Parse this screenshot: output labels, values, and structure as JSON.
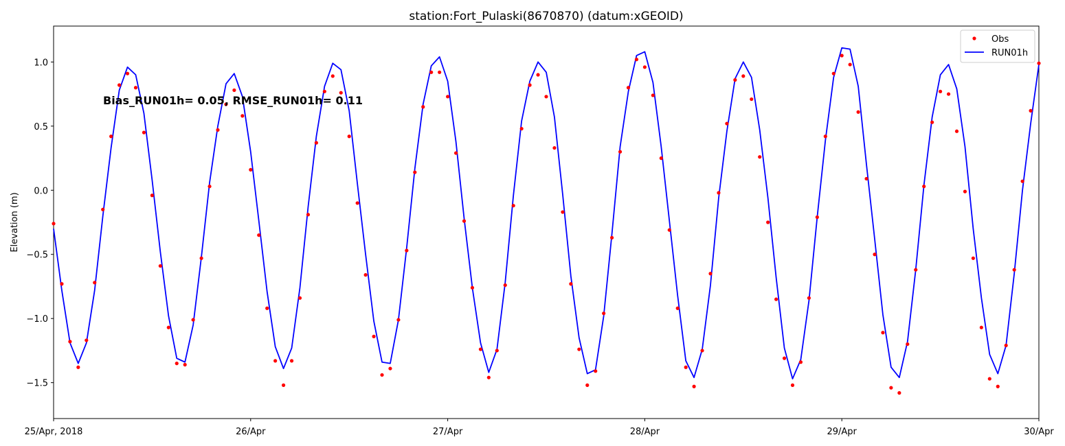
{
  "chart_data": {
    "type": "line",
    "title": "station:Fort_Pulaski(8670870) (datum:xGEOID)",
    "xlabel": "",
    "ylabel": "Elevation (m)",
    "xlim": [
      "2018-04-25 00:00",
      "2018-04-30 00:00"
    ],
    "ylim": [
      -1.78,
      1.28
    ],
    "x_tick_labels": [
      "25/Apr, 2018",
      "26/Apr",
      "27/Apr",
      "28/Apr",
      "29/Apr",
      "30/Apr"
    ],
    "y_ticks": [
      -1.5,
      -1.0,
      -0.5,
      0.0,
      0.5,
      1.0
    ],
    "y_tick_labels": [
      "−1.5",
      "−1.0",
      "−0.5",
      "0.0",
      "0.5",
      "1.0"
    ],
    "x_time_step_hours": 1,
    "annotation": "Bias_RUN01h=  0.05, RMSE_RUN01h=  0.11",
    "legend": {
      "position": "upper right",
      "entries": [
        "Obs",
        "RUN01h"
      ]
    },
    "grid": false,
    "series": [
      {
        "name": "Obs",
        "style": "markers",
        "color": "#ff0000",
        "values": [
          -0.26,
          -0.73,
          -1.18,
          -1.38,
          -1.17,
          -0.72,
          -0.15,
          0.42,
          0.82,
          0.91,
          0.8,
          0.45,
          -0.04,
          -0.59,
          -1.07,
          -1.35,
          -1.36,
          -1.01,
          -0.53,
          0.03,
          0.47,
          0.67,
          0.78,
          0.58,
          0.16,
          -0.35,
          -0.92,
          -1.33,
          -1.52,
          -1.33,
          -0.84,
          -0.19,
          0.37,
          0.77,
          0.89,
          0.76,
          0.42,
          -0.1,
          -0.66,
          -1.14,
          -1.44,
          -1.39,
          -1.01,
          -0.47,
          0.14,
          0.65,
          0.92,
          0.92,
          0.73,
          0.29,
          -0.24,
          -0.76,
          -1.24,
          -1.46,
          -1.25,
          -0.74,
          -0.12,
          0.48,
          0.82,
          0.9,
          0.73,
          0.33,
          -0.17,
          -0.73,
          -1.24,
          -1.52,
          -1.41,
          -0.96,
          -0.37,
          0.3,
          0.8,
          1.02,
          0.96,
          0.74,
          0.25,
          -0.31,
          -0.92,
          -1.38,
          -1.53,
          -1.25,
          -0.65,
          -0.02,
          0.52,
          0.86,
          0.89,
          0.71,
          0.26,
          -0.25,
          -0.85,
          -1.31,
          -1.52,
          -1.34,
          -0.84,
          -0.21,
          0.42,
          0.91,
          1.05,
          0.98,
          0.61,
          0.09,
          -0.5,
          -1.11,
          -1.54,
          -1.58,
          -1.2,
          -0.62,
          0.03,
          0.53,
          0.77,
          0.75,
          0.46,
          -0.01,
          -0.53,
          -1.07,
          -1.47,
          -1.53,
          -1.21,
          -0.62,
          0.07,
          0.62,
          0.99
        ]
      },
      {
        "name": "RUN01h",
        "style": "line",
        "color": "#0000ff",
        "values": [
          -0.3,
          -0.78,
          -1.19,
          -1.35,
          -1.19,
          -0.78,
          -0.2,
          0.33,
          0.78,
          0.96,
          0.9,
          0.6,
          0.08,
          -0.48,
          -0.98,
          -1.31,
          -1.34,
          -1.05,
          -0.52,
          0.06,
          0.5,
          0.83,
          0.91,
          0.73,
          0.3,
          -0.24,
          -0.79,
          -1.22,
          -1.39,
          -1.23,
          -0.76,
          -0.13,
          0.42,
          0.81,
          0.99,
          0.94,
          0.62,
          0.05,
          -0.5,
          -1.02,
          -1.34,
          -1.35,
          -1.01,
          -0.45,
          0.17,
          0.67,
          0.97,
          1.04,
          0.85,
          0.38,
          -0.22,
          -0.76,
          -1.19,
          -1.42,
          -1.24,
          -0.72,
          -0.04,
          0.54,
          0.85,
          1.0,
          0.92,
          0.57,
          -0.03,
          -0.67,
          -1.15,
          -1.43,
          -1.4,
          -0.98,
          -0.34,
          0.34,
          0.77,
          1.05,
          1.08,
          0.84,
          0.34,
          -0.24,
          -0.82,
          -1.33,
          -1.46,
          -1.24,
          -0.74,
          -0.06,
          0.46,
          0.87,
          1.0,
          0.88,
          0.47,
          -0.06,
          -0.68,
          -1.23,
          -1.47,
          -1.32,
          -0.86,
          -0.21,
          0.39,
          0.88,
          1.11,
          1.1,
          0.81,
          0.2,
          -0.38,
          -0.97,
          -1.38,
          -1.46,
          -1.18,
          -0.62,
          0.04,
          0.57,
          0.9,
          0.98,
          0.79,
          0.34,
          -0.3,
          -0.84,
          -1.28,
          -1.43,
          -1.21,
          -0.65,
          0.0,
          0.52,
          0.98
        ]
      }
    ]
  }
}
